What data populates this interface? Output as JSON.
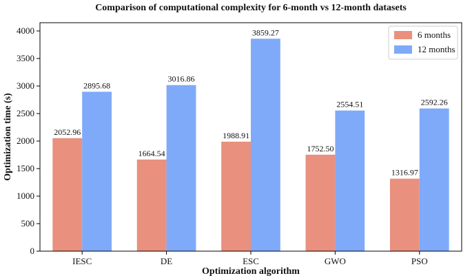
{
  "chart_data": {
    "type": "bar",
    "title": "Comparison of computational complexity for 6-month vs 12-month datasets",
    "xlabel": "Optimization algorithm",
    "ylabel": "Optimization time (s)",
    "categories": [
      "IESC",
      "DE",
      "ESC",
      "GWO",
      "PSO"
    ],
    "series": [
      {
        "name": "6 months",
        "color": "#e9907f",
        "values": [
          2052.96,
          1664.54,
          1988.91,
          1752.5,
          1316.97
        ],
        "labels": [
          "2052.96",
          "1664.54",
          "1988.91",
          "1752.50",
          "1316.97"
        ]
      },
      {
        "name": "12 months",
        "color": "#7faaf9",
        "values": [
          2895.68,
          3016.86,
          3859.27,
          2554.51,
          2592.26
        ],
        "labels": [
          "2895.68",
          "3016.86",
          "3859.27",
          "2554.51",
          "2592.26"
        ]
      }
    ],
    "ylim": [
      0,
      4150
    ],
    "yticks": [
      0,
      500,
      1000,
      1500,
      2000,
      2500,
      3000,
      3500,
      4000
    ],
    "legend_position": "top-right",
    "grid": false
  }
}
